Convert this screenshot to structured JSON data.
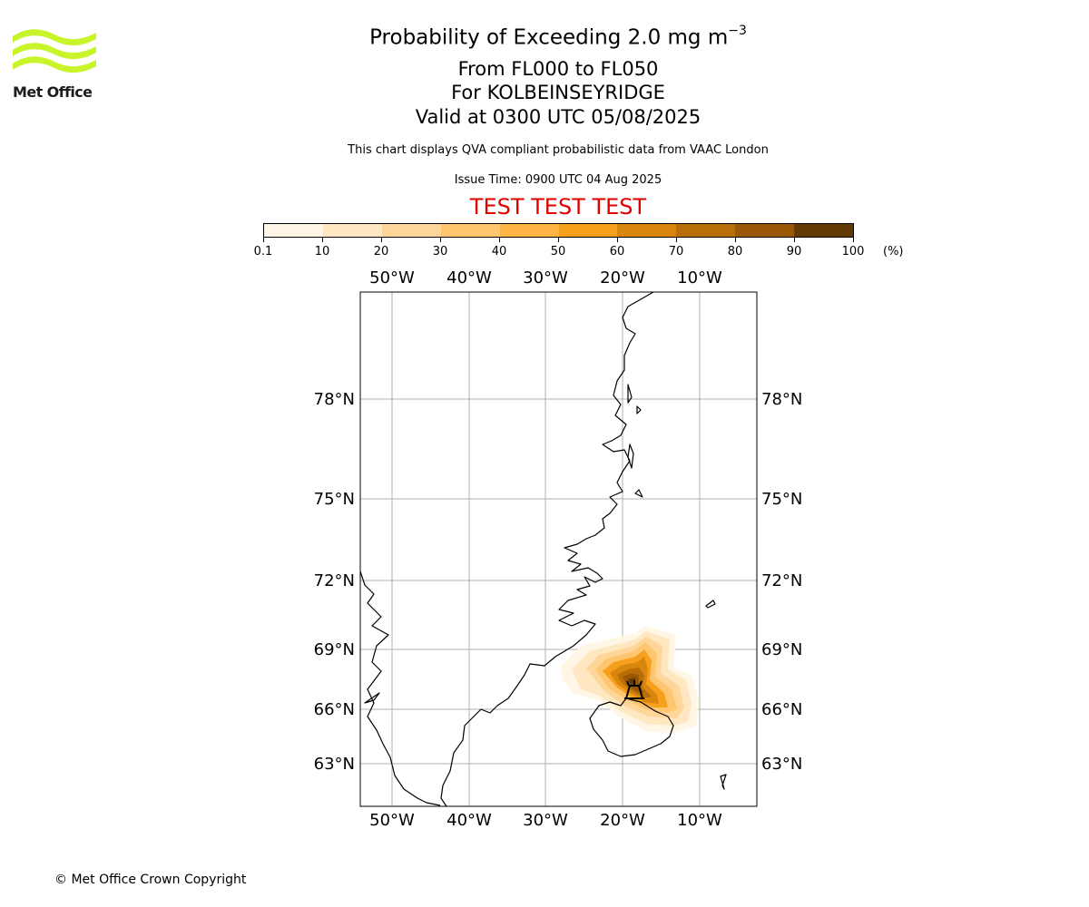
{
  "logo": {
    "text": "Met Office",
    "color": "#c8f52a"
  },
  "title": {
    "line1_prefix": "Probability of Exceeding 2.0 mg m",
    "line1_exponent": "−3",
    "line2": "From FL000 to FL050",
    "line3": "For KOLBEINSEYRIDGE",
    "line4": "Valid at 0300 UTC 05/08/2025"
  },
  "subtitle": "This chart displays QVA compliant probabilistic data from VAAC London",
  "issue_time": "Issue Time: 0900 UTC 04 Aug 2025",
  "test_banner": "TEST TEST TEST",
  "colorbar": {
    "labels": [
      "0.1",
      "10",
      "20",
      "30",
      "40",
      "50",
      "60",
      "70",
      "80",
      "90",
      "100"
    ],
    "unit": "(%)",
    "colors": [
      "#fff6e6",
      "#ffe7c2",
      "#ffd699",
      "#ffc670",
      "#ffb445",
      "#f7a01e",
      "#d9860e",
      "#ba6e08",
      "#9a5806",
      "#623a06"
    ]
  },
  "map": {
    "lon_labels": [
      "50°W",
      "40°W",
      "30°W",
      "20°W",
      "10°W"
    ],
    "lat_labels": [
      "78°N",
      "75°N",
      "72°N",
      "69°N",
      "66°N",
      "63°N"
    ],
    "volcano": "volcano-icon"
  },
  "copyright": "© Met Office Crown Copyright"
}
